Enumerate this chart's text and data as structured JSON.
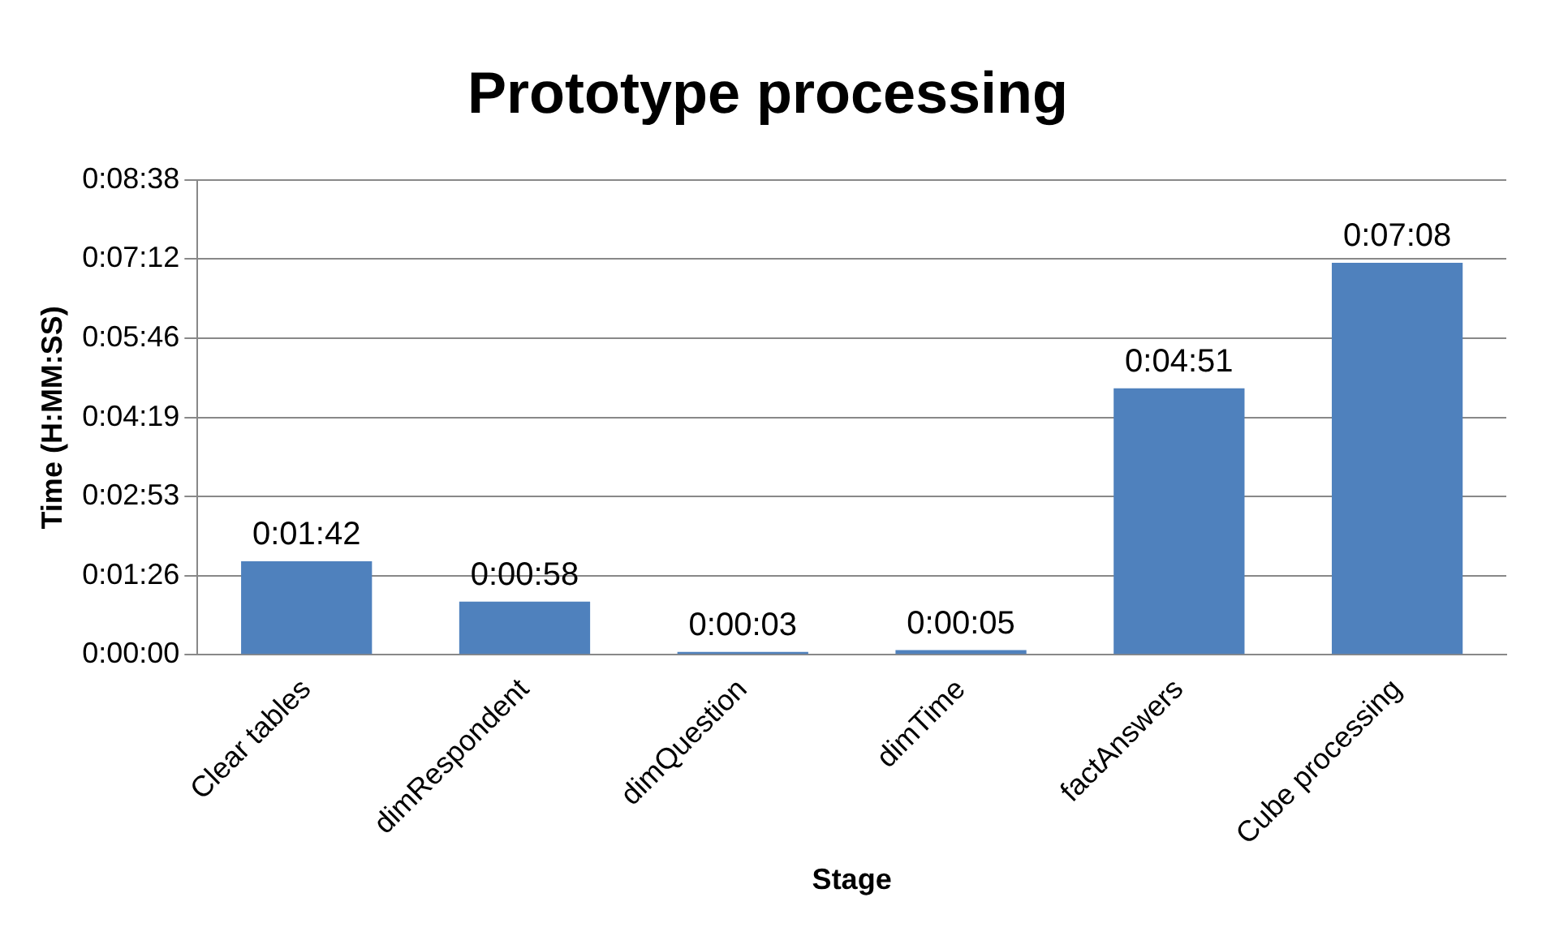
{
  "chart_data": {
    "type": "bar",
    "title": "Prototype processing",
    "xlabel": "Stage",
    "ylabel": "Time (H:MM:SS)",
    "categories": [
      "Clear tables",
      "dimRespondent",
      "dimQuestion",
      "dimTime",
      "factAnswers",
      "Cube processing"
    ],
    "values": [
      102,
      58,
      3,
      5,
      291,
      428
    ],
    "value_labels": [
      "0:01:42",
      "0:00:58",
      "0:00:03",
      "0:00:05",
      "0:04:51",
      "0:07:08"
    ],
    "color": "#4f81bd",
    "ylim": [
      0,
      518
    ],
    "yticks": [
      {
        "value": 0,
        "label": "0:00:00"
      },
      {
        "value": 86,
        "label": "0:01:26"
      },
      {
        "value": 173,
        "label": "0:02:53"
      },
      {
        "value": 259,
        "label": "0:04:19"
      },
      {
        "value": 346,
        "label": "0:05:46"
      },
      {
        "value": 432,
        "label": "0:07:12"
      },
      {
        "value": 518,
        "label": "0:08:38"
      }
    ],
    "grid": "y",
    "legend": false
  }
}
